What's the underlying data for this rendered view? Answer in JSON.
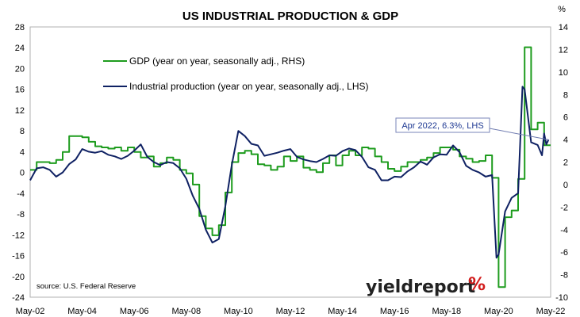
{
  "chart_data": {
    "type": "line",
    "title": "US INDUSTRIAL PRODUCTION & GDP",
    "right_axis_unit": "%",
    "x_range": [
      "2002-05",
      "2022-05"
    ],
    "x_ticks": [
      "May-02",
      "May-04",
      "May-06",
      "May-08",
      "May-10",
      "May-12",
      "May-14",
      "May-16",
      "May-18",
      "May-20",
      "May-22"
    ],
    "y_left": {
      "min": -24,
      "max": 28,
      "step": 4
    },
    "y_right": {
      "min": -10,
      "max": 14,
      "step": 2
    },
    "grid": false,
    "legend_position": "top-left",
    "series": [
      {
        "name": "GDP (year on year, seasonally adj., RHS)",
        "axis": "right",
        "color": "#1e9c1e",
        "step": true,
        "points": [
          [
            "2002-05",
            1.3
          ],
          [
            "2002-08",
            2.0
          ],
          [
            "2002-11",
            2.0
          ],
          [
            "2003-02",
            1.9
          ],
          [
            "2003-05",
            2.2
          ],
          [
            "2003-08",
            2.9
          ],
          [
            "2003-11",
            4.3
          ],
          [
            "2004-02",
            4.3
          ],
          [
            "2004-05",
            4.2
          ],
          [
            "2004-08",
            3.8
          ],
          [
            "2004-11",
            3.4
          ],
          [
            "2005-02",
            3.3
          ],
          [
            "2005-05",
            3.2
          ],
          [
            "2005-08",
            3.3
          ],
          [
            "2005-11",
            3.0
          ],
          [
            "2006-02",
            3.3
          ],
          [
            "2006-05",
            2.9
          ],
          [
            "2006-08",
            2.4
          ],
          [
            "2006-11",
            2.5
          ],
          [
            "2007-02",
            1.6
          ],
          [
            "2007-05",
            1.9
          ],
          [
            "2007-08",
            2.4
          ],
          [
            "2007-11",
            2.2
          ],
          [
            "2008-02",
            1.3
          ],
          [
            "2008-05",
            1.0
          ],
          [
            "2008-08",
            0.0
          ],
          [
            "2008-11",
            -2.8
          ],
          [
            "2009-02",
            -3.9
          ],
          [
            "2009-05",
            -4.5
          ],
          [
            "2009-08",
            -3.6
          ],
          [
            "2009-11",
            -0.7
          ],
          [
            "2010-02",
            2.0
          ],
          [
            "2010-05",
            2.8
          ],
          [
            "2010-08",
            3.0
          ],
          [
            "2010-11",
            2.7
          ],
          [
            "2011-02",
            1.8
          ],
          [
            "2011-05",
            1.7
          ],
          [
            "2011-08",
            1.3
          ],
          [
            "2011-11",
            1.6
          ],
          [
            "2012-02",
            2.5
          ],
          [
            "2012-05",
            2.1
          ],
          [
            "2012-08",
            2.5
          ],
          [
            "2012-11",
            1.5
          ],
          [
            "2013-02",
            1.3
          ],
          [
            "2013-05",
            1.1
          ],
          [
            "2013-08",
            1.9
          ],
          [
            "2013-11",
            2.6
          ],
          [
            "2014-02",
            1.7
          ],
          [
            "2014-05",
            2.6
          ],
          [
            "2014-08",
            3.0
          ],
          [
            "2014-11",
            2.6
          ],
          [
            "2015-02",
            3.3
          ],
          [
            "2015-05",
            3.2
          ],
          [
            "2015-08",
            2.5
          ],
          [
            "2015-11",
            2.0
          ],
          [
            "2016-02",
            1.4
          ],
          [
            "2016-05",
            1.2
          ],
          [
            "2016-08",
            1.6
          ],
          [
            "2016-11",
            2.0
          ],
          [
            "2017-02",
            2.0
          ],
          [
            "2017-05",
            2.2
          ],
          [
            "2017-08",
            2.4
          ],
          [
            "2017-11",
            2.8
          ],
          [
            "2018-02",
            3.3
          ],
          [
            "2018-05",
            3.3
          ],
          [
            "2018-08",
            3.1
          ],
          [
            "2018-11",
            2.5
          ],
          [
            "2019-02",
            2.3
          ],
          [
            "2019-05",
            2.0
          ],
          [
            "2019-08",
            2.1
          ],
          [
            "2019-11",
            2.6
          ],
          [
            "2020-02",
            0.6
          ],
          [
            "2020-05",
            -9.1
          ],
          [
            "2020-08",
            -2.9
          ],
          [
            "2020-11",
            -2.3
          ],
          [
            "2021-02",
            0.5
          ],
          [
            "2021-05",
            12.2
          ],
          [
            "2021-08",
            4.9
          ],
          [
            "2021-11",
            5.5
          ],
          [
            "2022-02",
            3.5
          ],
          [
            "2022-05",
            3.5
          ]
        ]
      },
      {
        "name": "Industrial production (year on year, seasonally adj., LHS)",
        "axis": "left",
        "color": "#0f2163",
        "step": false,
        "points": [
          [
            "2002-05",
            -1.5
          ],
          [
            "2002-08",
            0.8
          ],
          [
            "2002-11",
            1.0
          ],
          [
            "2003-02",
            0.5
          ],
          [
            "2003-05",
            -0.8
          ],
          [
            "2003-08",
            0.0
          ],
          [
            "2003-11",
            1.6
          ],
          [
            "2004-02",
            2.5
          ],
          [
            "2004-05",
            4.5
          ],
          [
            "2004-08",
            4.0
          ],
          [
            "2004-11",
            3.8
          ],
          [
            "2005-02",
            4.1
          ],
          [
            "2005-05",
            3.4
          ],
          [
            "2005-08",
            3.1
          ],
          [
            "2005-11",
            2.6
          ],
          [
            "2006-02",
            3.2
          ],
          [
            "2006-05",
            4.2
          ],
          [
            "2006-08",
            5.4
          ],
          [
            "2006-11",
            3.0
          ],
          [
            "2007-02",
            2.0
          ],
          [
            "2007-05",
            1.4
          ],
          [
            "2007-08",
            2.0
          ],
          [
            "2007-11",
            1.8
          ],
          [
            "2008-02",
            0.8
          ],
          [
            "2008-05",
            -1.2
          ],
          [
            "2008-08",
            -4.5
          ],
          [
            "2008-11",
            -7.0
          ],
          [
            "2009-02",
            -11.0
          ],
          [
            "2009-05",
            -13.5
          ],
          [
            "2009-08",
            -12.8
          ],
          [
            "2009-11",
            -6.5
          ],
          [
            "2010-02",
            1.5
          ],
          [
            "2010-05",
            8.0
          ],
          [
            "2010-08",
            7.0
          ],
          [
            "2010-11",
            5.5
          ],
          [
            "2011-02",
            5.2
          ],
          [
            "2011-05",
            3.2
          ],
          [
            "2011-08",
            3.5
          ],
          [
            "2011-11",
            3.8
          ],
          [
            "2012-02",
            4.2
          ],
          [
            "2012-05",
            4.5
          ],
          [
            "2012-08",
            3.0
          ],
          [
            "2012-11",
            2.5
          ],
          [
            "2013-02",
            2.2
          ],
          [
            "2013-05",
            2.0
          ],
          [
            "2013-08",
            2.6
          ],
          [
            "2013-11",
            3.3
          ],
          [
            "2014-02",
            3.2
          ],
          [
            "2014-05",
            4.1
          ],
          [
            "2014-08",
            4.6
          ],
          [
            "2014-11",
            4.3
          ],
          [
            "2015-02",
            3.0
          ],
          [
            "2015-05",
            1.0
          ],
          [
            "2015-08",
            0.5
          ],
          [
            "2015-11",
            -1.5
          ],
          [
            "2016-02",
            -1.5
          ],
          [
            "2016-05",
            -0.8
          ],
          [
            "2016-08",
            -0.9
          ],
          [
            "2016-11",
            0.2
          ],
          [
            "2017-02",
            1.0
          ],
          [
            "2017-05",
            2.1
          ],
          [
            "2017-08",
            1.5
          ],
          [
            "2017-11",
            2.9
          ],
          [
            "2018-02",
            3.5
          ],
          [
            "2018-05",
            3.4
          ],
          [
            "2018-08",
            5.2
          ],
          [
            "2018-11",
            3.9
          ],
          [
            "2019-02",
            1.3
          ],
          [
            "2019-05",
            0.5
          ],
          [
            "2019-08",
            0.0
          ],
          [
            "2019-11",
            -0.8
          ],
          [
            "2020-02",
            -0.5
          ],
          [
            "2020-04",
            -16.4
          ],
          [
            "2020-05",
            -15.8
          ],
          [
            "2020-08",
            -7.5
          ],
          [
            "2020-11",
            -4.9
          ],
          [
            "2021-02",
            -4.0
          ],
          [
            "2021-04",
            16.5
          ],
          [
            "2021-05",
            16.0
          ],
          [
            "2021-08",
            5.8
          ],
          [
            "2021-11",
            5.3
          ],
          [
            "2022-01",
            3.3
          ],
          [
            "2022-02",
            7.5
          ],
          [
            "2022-03",
            5.4
          ],
          [
            "2022-04",
            6.3
          ]
        ]
      }
    ],
    "annotations": [
      {
        "text": "Apr 2022, 6.3%, LHS",
        "target_date": "2022-04",
        "target_value": 6.3,
        "axis": "left"
      }
    ],
    "source_text": "source: U.S. Federal Reserve",
    "logo": {
      "text": "yieldreport",
      "symbol": "%"
    }
  }
}
